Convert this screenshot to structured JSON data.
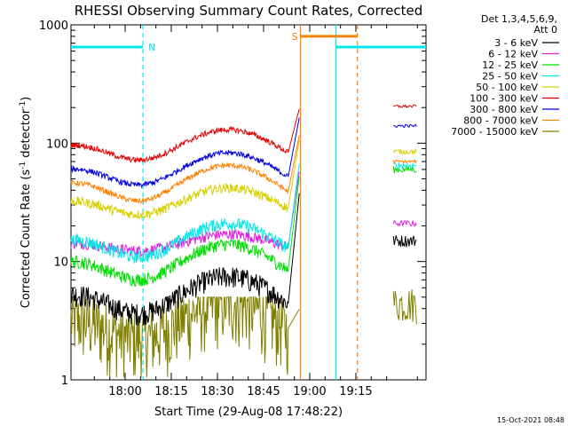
{
  "chart_data": {
    "type": "line",
    "title": "RHESSI Observing Summary Count Rates, Corrected",
    "xlabel": "Start Time (29-Aug-08 17:48:22)",
    "ylabel": "Corrected Count Rate (s",
    "ylabel_sup1": "-1",
    "ylabel_mid": " detector",
    "ylabel_sup2": "-1",
    "ylabel_end": ")",
    "y_scale": "log",
    "ylim": [
      1,
      1000
    ],
    "y_ticks": [
      {
        "value": 1,
        "label": "1"
      },
      {
        "value": 10,
        "label": "10"
      },
      {
        "value": 100,
        "label": "100"
      },
      {
        "value": 1000,
        "label": "1000"
      }
    ],
    "x_start_min": 17.6,
    "x_end_min": 97.8,
    "x_ticks": [
      {
        "value": 0,
        "label": "18:00"
      },
      {
        "value": 15,
        "label": "18:15"
      },
      {
        "value": 30,
        "label": "18:30"
      },
      {
        "value": 45,
        "label": "18:45"
      },
      {
        "value": 60,
        "label": "19:00"
      },
      {
        "value": 75,
        "label": "19:15"
      }
    ],
    "legend_header_1": "Det 1,3,4,5,6,9,",
    "legend_header_2": "Att 0",
    "legend_placement": "right",
    "footer_date": "15-Oct-2021 08:48",
    "series": [
      {
        "name": "3 - 6 keV",
        "color": "#000000",
        "base": 2.5,
        "amp": 5,
        "noise": 0.12,
        "rise_to": 40,
        "after": 15
      },
      {
        "name": "6 - 12 keV",
        "color": "#e020e0",
        "base": 11,
        "amp": 6,
        "noise": 0.06,
        "rise_to": 60,
        "after": 21
      },
      {
        "name": "12 - 25 keV",
        "color": "#00e000",
        "base": 5,
        "amp": 9,
        "noise": 0.07,
        "rise_to": 55,
        "after": 60
      },
      {
        "name": "25 - 50 keV",
        "color": "#00e8e8",
        "base": 8,
        "amp": 13,
        "noise": 0.07,
        "rise_to": 70,
        "after": 65
      },
      {
        "name": "50 - 100 keV",
        "color": "#d8d000",
        "base": 20,
        "amp": 22,
        "noise": 0.05,
        "rise_to": 110,
        "after": 85
      },
      {
        "name": "100 - 300 keV",
        "color": "#e00000",
        "base": 55,
        "amp": 75,
        "noise": 0.03,
        "rise_to": 200,
        "after": 205
      },
      {
        "name": "300 - 800 keV",
        "color": "#0000e0",
        "base": 33,
        "amp": 50,
        "noise": 0.03,
        "rise_to": 170,
        "after": 140
      },
      {
        "name": "800 - 7000 keV",
        "color": "#ff8000",
        "base": 23,
        "amp": 42,
        "noise": 0.03,
        "rise_to": 120,
        "after": 70
      },
      {
        "name": "7000 - 15000 keV",
        "color": "#808000",
        "base": 1.6,
        "amp": 3,
        "noise": 0.35,
        "rise_to": 4,
        "after": 4.5
      }
    ],
    "annotations": {
      "night_label": "N",
      "saa_label": "S",
      "night_level": 650,
      "saa_level": 800,
      "night_intervals": [
        [
          -17.6,
          5.8
        ],
        [
          68.5,
          97.8
        ]
      ],
      "saa_intervals": [
        [
          57,
          75.5
        ]
      ],
      "night_color": "#00e8e8",
      "saa_color": "#ff8000"
    }
  }
}
